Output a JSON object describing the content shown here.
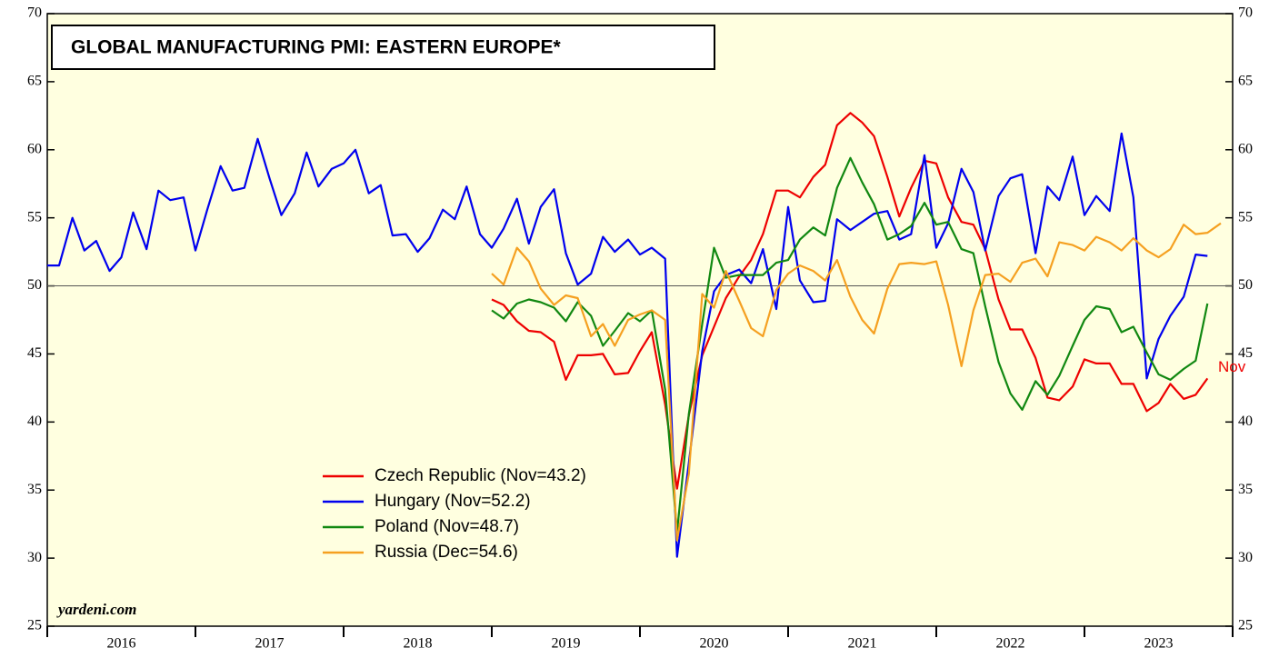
{
  "chart_data": {
    "type": "line",
    "title": "GLOBAL MANUFACTURING PMI: EASTERN EUROPE*",
    "annotations": {
      "source": "yardeni.com",
      "end_label": "Nov"
    },
    "categories": [
      "2016",
      "2017",
      "2018",
      "2019",
      "2020",
      "2021",
      "2022",
      "2023"
    ],
    "x": [
      2016,
      2016.08,
      2016.17,
      2016.25,
      2016.33,
      2016.42,
      2016.5,
      2016.58,
      2016.67,
      2016.75,
      2016.83,
      2016.92,
      2017,
      2017.08,
      2017.17,
      2017.25,
      2017.33,
      2017.42,
      2017.5,
      2017.58,
      2017.67,
      2017.75,
      2017.83,
      2017.92,
      2018,
      2018.08,
      2018.17,
      2018.25,
      2018.33,
      2018.42,
      2018.5,
      2018.58,
      2018.67,
      2018.75,
      2018.83,
      2018.92,
      2019,
      2019.08,
      2019.17,
      2019.25,
      2019.33,
      2019.42,
      2019.5,
      2019.58,
      2019.67,
      2019.75,
      2019.83,
      2019.92,
      2020,
      2020.08,
      2020.17,
      2020.25,
      2020.33,
      2020.42,
      2020.5,
      2020.58,
      2020.67,
      2020.75,
      2020.83,
      2020.92,
      2021,
      2021.08,
      2021.17,
      2021.25,
      2021.33,
      2021.42,
      2021.5,
      2021.58,
      2021.67,
      2021.75,
      2021.83,
      2021.92,
      2022,
      2022.08,
      2022.17,
      2022.25,
      2022.33,
      2022.42,
      2022.5,
      2022.58,
      2022.67,
      2022.75,
      2022.83,
      2022.92,
      2023,
      2023.08,
      2023.17,
      2023.25,
      2023.33,
      2023.42,
      2023.5,
      2023.58,
      2023.67,
      2023.75,
      2023.83,
      2023.92
    ],
    "series": [
      {
        "name": "Czech Republic (Nov=43.2)",
        "color": "#ee0000",
        "values": [
          null,
          null,
          null,
          null,
          null,
          null,
          null,
          null,
          null,
          null,
          null,
          null,
          null,
          null,
          null,
          null,
          null,
          null,
          null,
          null,
          null,
          null,
          null,
          null,
          null,
          null,
          null,
          null,
          null,
          null,
          null,
          null,
          null,
          null,
          null,
          null,
          49.0,
          48.6,
          47.4,
          46.7,
          46.6,
          45.9,
          43.1,
          44.9,
          44.9,
          45.0,
          43.5,
          43.6,
          45.2,
          46.6,
          41.3,
          35.1,
          40.5,
          44.9,
          47.0,
          49.1,
          50.7,
          51.9,
          53.8,
          57.0,
          57.0,
          56.5,
          58.0,
          58.9,
          61.8,
          62.7,
          62.0,
          61.0,
          58.0,
          55.1,
          57.2,
          59.2,
          59.0,
          56.5,
          54.7,
          54.5,
          52.7,
          49.0,
          46.8,
          46.8,
          44.7,
          41.8,
          41.6,
          42.6,
          44.6,
          44.3,
          44.3,
          42.8,
          42.8,
          40.8,
          41.4,
          42.8,
          41.7,
          42.0,
          43.2,
          null
        ]
      },
      {
        "name": "Hungary (Nov=52.2)",
        "color": "#0000ee",
        "values": [
          51.5,
          51.5,
          55.0,
          52.6,
          53.3,
          51.1,
          52.1,
          55.4,
          52.7,
          57.0,
          56.3,
          56.5,
          52.6,
          55.6,
          58.8,
          57.0,
          57.2,
          60.8,
          57.9,
          55.2,
          56.8,
          59.8,
          57.3,
          58.6,
          59.0,
          60.0,
          56.8,
          57.4,
          53.7,
          53.8,
          52.5,
          53.5,
          55.6,
          54.9,
          57.3,
          53.8,
          52.8,
          54.2,
          56.4,
          53.1,
          55.8,
          57.1,
          52.4,
          50.1,
          50.9,
          53.6,
          52.5,
          53.4,
          52.3,
          52.8,
          52.0,
          30.1,
          37.0,
          45.2,
          49.6,
          50.8,
          51.2,
          50.2,
          52.7,
          48.3,
          55.8,
          50.4,
          48.8,
          48.9,
          54.9,
          54.1,
          54.7,
          55.3,
          55.5,
          53.4,
          53.8,
          59.6,
          52.8,
          54.6,
          58.6,
          56.9,
          52.6,
          56.6,
          57.9,
          58.2,
          52.4,
          57.3,
          56.3,
          59.5,
          55.2,
          56.6,
          55.5,
          61.2,
          56.5,
          43.2,
          46.1,
          47.8,
          49.2,
          52.3,
          52.2,
          null
        ]
      },
      {
        "name": "Poland (Nov=48.7)",
        "color": "#118811",
        "values": [
          null,
          null,
          null,
          null,
          null,
          null,
          null,
          null,
          null,
          null,
          null,
          null,
          null,
          null,
          null,
          null,
          null,
          null,
          null,
          null,
          null,
          null,
          null,
          null,
          null,
          null,
          null,
          null,
          null,
          null,
          null,
          null,
          null,
          null,
          null,
          null,
          48.2,
          47.6,
          48.7,
          49.0,
          48.8,
          48.4,
          47.4,
          48.8,
          47.8,
          45.6,
          46.7,
          48.0,
          47.4,
          48.2,
          42.4,
          31.9,
          40.6,
          47.2,
          52.8,
          50.6,
          50.8,
          50.8,
          50.8,
          51.7,
          51.9,
          53.4,
          54.3,
          53.7,
          57.2,
          59.4,
          57.6,
          56.0,
          53.4,
          53.8,
          54.4,
          56.1,
          54.5,
          54.7,
          52.7,
          52.4,
          48.5,
          44.4,
          42.1,
          40.9,
          43.0,
          42.0,
          43.4,
          45.6,
          47.5,
          48.5,
          48.3,
          46.6,
          47.0,
          45.1,
          43.5,
          43.1,
          43.9,
          44.5,
          48.7,
          null
        ]
      },
      {
        "name": "Russia (Dec=54.6)",
        "color": "#f5a020",
        "values": [
          null,
          null,
          null,
          null,
          null,
          null,
          null,
          null,
          null,
          null,
          null,
          null,
          null,
          null,
          null,
          null,
          null,
          null,
          null,
          null,
          null,
          null,
          null,
          null,
          null,
          null,
          null,
          null,
          null,
          null,
          null,
          null,
          null,
          null,
          null,
          null,
          50.9,
          50.1,
          52.8,
          51.8,
          49.8,
          48.6,
          49.3,
          49.1,
          46.3,
          47.2,
          45.6,
          47.5,
          47.9,
          48.2,
          47.5,
          31.3,
          36.2,
          49.4,
          48.4,
          51.1,
          48.9,
          46.9,
          46.3,
          49.7,
          50.9,
          51.5,
          51.1,
          50.4,
          51.9,
          49.2,
          47.5,
          46.5,
          49.8,
          51.6,
          51.7,
          51.6,
          51.8,
          48.6,
          44.1,
          48.2,
          50.8,
          50.9,
          50.3,
          51.7,
          52.0,
          50.7,
          53.2,
          53.0,
          52.6,
          53.6,
          53.2,
          52.6,
          53.5,
          52.6,
          52.1,
          52.7,
          54.5,
          53.8,
          53.9,
          54.6
        ]
      }
    ],
    "xlim": [
      2016,
      2024
    ],
    "xticks": [
      2016,
      2017,
      2018,
      2019,
      2020,
      2021,
      2022,
      2023,
      2024
    ],
    "ylim": [
      25,
      70
    ],
    "yticks": [
      25,
      30,
      35,
      40,
      45,
      50,
      55,
      60,
      65,
      70
    ],
    "reference_line": 50,
    "right_axis": true,
    "background": "#ffffe0"
  }
}
